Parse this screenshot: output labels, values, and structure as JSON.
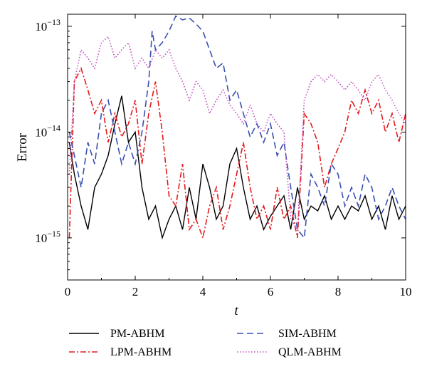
{
  "chart_data": {
    "type": "line",
    "xlabel": "t",
    "ylabel": "Error",
    "x_range": [
      0,
      10
    ],
    "y_range": [
      4e-16,
      1.3e-13
    ],
    "y_scale": "log",
    "x_ticks": [
      "0",
      "2",
      "4",
      "6",
      "8",
      "10"
    ],
    "y_ticks": [
      {
        "value": 1e-13,
        "base": "10",
        "exp": "−13"
      },
      {
        "value": 1e-14,
        "base": "10",
        "exp": "−14"
      },
      {
        "value": 1e-15,
        "base": "10",
        "exp": "−15"
      }
    ],
    "grid": false,
    "legend_position": "bottom",
    "series": [
      {
        "name": "PM-ABHM",
        "color": "#000000",
        "dash": "solid",
        "x": [
          0.05,
          0.2,
          0.4,
          0.6,
          0.8,
          1.0,
          1.2,
          1.4,
          1.6,
          1.8,
          2.0,
          2.2,
          2.4,
          2.6,
          2.8,
          3.0,
          3.2,
          3.4,
          3.6,
          3.8,
          4.0,
          4.2,
          4.4,
          4.6,
          4.8,
          5.0,
          5.2,
          5.4,
          5.6,
          5.8,
          6.0,
          6.2,
          6.4,
          6.6,
          6.8,
          7.0,
          7.2,
          7.4,
          7.6,
          7.8,
          8.0,
          8.2,
          8.4,
          8.6,
          8.8,
          9.0,
          9.2,
          9.4,
          9.6,
          9.8,
          10.0
        ],
        "y": [
          8e-15,
          4e-15,
          2e-15,
          1.2e-15,
          3e-15,
          4e-15,
          6e-15,
          1.2e-14,
          2.2e-14,
          8e-15,
          1e-14,
          3e-15,
          1.5e-15,
          2e-15,
          1e-15,
          1.5e-15,
          2e-15,
          1.2e-15,
          3e-15,
          1.5e-15,
          5e-15,
          3e-15,
          1.5e-15,
          2e-15,
          5e-15,
          7e-15,
          3e-15,
          1.5e-15,
          2e-15,
          1.2e-15,
          1.6e-15,
          2e-15,
          2.5e-15,
          1.2e-15,
          3e-15,
          1.5e-15,
          2e-15,
          1.8e-15,
          2.5e-15,
          1.5e-15,
          2e-15,
          1.5e-15,
          2e-15,
          1.8e-15,
          2.5e-15,
          1.5e-15,
          2e-15,
          1.2e-15,
          2.5e-15,
          1.5e-15,
          2e-15
        ]
      },
      {
        "name": "LPM-ABHM",
        "color": "#e41a1c",
        "dash": "dashdot",
        "x": [
          0.05,
          0.2,
          0.4,
          0.6,
          0.8,
          1.0,
          1.2,
          1.4,
          1.6,
          1.8,
          2.0,
          2.2,
          2.4,
          2.6,
          2.8,
          3.0,
          3.2,
          3.4,
          3.6,
          3.8,
          4.0,
          4.2,
          4.4,
          4.6,
          4.8,
          5.0,
          5.2,
          5.4,
          5.6,
          5.8,
          6.0,
          6.2,
          6.4,
          6.6,
          6.8,
          7.0,
          7.2,
          7.4,
          7.6,
          7.8,
          8.0,
          8.2,
          8.4,
          8.6,
          8.8,
          9.0,
          9.2,
          9.4,
          9.6,
          9.8,
          10.0
        ],
        "y": [
          1e-15,
          3e-14,
          4e-14,
          2.5e-14,
          1.5e-14,
          2e-14,
          8e-15,
          1.5e-14,
          9e-15,
          1.2e-14,
          2e-14,
          5e-15,
          1.5e-14,
          3e-14,
          1e-14,
          2.5e-15,
          2e-15,
          5e-15,
          1.2e-15,
          1.5e-15,
          1e-15,
          2e-15,
          3e-15,
          1.2e-15,
          2e-15,
          4e-15,
          8e-15,
          3e-15,
          1.5e-15,
          2e-15,
          1.2e-15,
          3e-15,
          1.5e-15,
          2e-15,
          1e-15,
          1.5e-14,
          1.2e-14,
          8e-15,
          3e-15,
          5e-15,
          7e-15,
          1e-14,
          2e-14,
          1.5e-14,
          2.5e-14,
          1.5e-14,
          2e-14,
          1e-14,
          1.5e-14,
          8e-15,
          1.5e-14
        ]
      },
      {
        "name": "SIM-ABHM",
        "color": "#3a4fb0",
        "dash": "dashed",
        "x": [
          0.05,
          0.2,
          0.4,
          0.6,
          0.8,
          1.0,
          1.2,
          1.4,
          1.6,
          1.8,
          2.0,
          2.2,
          2.4,
          2.5,
          2.6,
          2.8,
          3.0,
          3.2,
          3.4,
          3.6,
          3.8,
          4.0,
          4.2,
          4.4,
          4.6,
          4.8,
          5.0,
          5.2,
          5.4,
          5.6,
          5.8,
          6.0,
          6.2,
          6.4,
          6.6,
          6.8,
          7.0,
          7.2,
          7.4,
          7.6,
          7.8,
          8.0,
          8.2,
          8.4,
          8.6,
          8.8,
          9.0,
          9.2,
          9.4,
          9.6,
          9.8,
          10.0
        ],
        "y": [
          1e-14,
          6e-15,
          3e-15,
          8e-15,
          5e-15,
          1.5e-14,
          2e-14,
          1e-14,
          5e-15,
          8e-15,
          5e-15,
          1e-14,
          3e-14,
          9e-14,
          6e-14,
          7e-14,
          9e-14,
          1.25e-13,
          1.15e-13,
          1.2e-13,
          1.05e-13,
          9e-14,
          6e-14,
          4e-14,
          4.5e-14,
          2e-14,
          2.5e-14,
          1.5e-14,
          9e-15,
          1.2e-14,
          8e-15,
          1.2e-14,
          6e-15,
          8e-15,
          3e-15,
          1.2e-15,
          1e-15,
          4e-15,
          3e-15,
          2e-15,
          5e-15,
          4e-15,
          2e-15,
          3e-15,
          2e-15,
          4e-15,
          3e-15,
          1.5e-15,
          2e-15,
          3e-15,
          2e-15,
          1.5e-15
        ]
      },
      {
        "name": "QLM-ABHM",
        "color": "#c050c0",
        "dash": "dotted",
        "x": [
          0.05,
          0.2,
          0.4,
          0.6,
          0.8,
          1.0,
          1.2,
          1.4,
          1.6,
          1.8,
          2.0,
          2.2,
          2.4,
          2.6,
          2.8,
          3.0,
          3.2,
          3.4,
          3.6,
          3.8,
          4.0,
          4.2,
          4.4,
          4.6,
          4.8,
          5.0,
          5.2,
          5.4,
          5.6,
          5.8,
          6.0,
          6.2,
          6.4,
          6.6,
          6.8,
          7.0,
          7.2,
          7.4,
          7.6,
          7.8,
          8.0,
          8.2,
          8.4,
          8.6,
          8.8,
          9.0,
          9.2,
          9.4,
          9.6,
          9.8,
          10.0
        ],
        "y": [
          4e-15,
          3e-14,
          6e-14,
          5e-14,
          4e-14,
          7e-14,
          8e-14,
          5e-14,
          6e-14,
          7e-14,
          4e-14,
          5e-14,
          4e-14,
          6e-14,
          5e-14,
          6e-14,
          4e-14,
          3e-14,
          2e-14,
          3e-14,
          2.5e-14,
          1.5e-14,
          2e-14,
          2.5e-14,
          1.8e-14,
          1.5e-14,
          1.2e-14,
          1.8e-14,
          1.2e-14,
          1e-14,
          1.5e-14,
          1.2e-14,
          1e-14,
          1.5e-15,
          1.2e-15,
          2e-14,
          3e-14,
          3.5e-14,
          3e-14,
          3.5e-14,
          3e-14,
          2.5e-14,
          3e-14,
          2.5e-14,
          2e-14,
          3e-14,
          3.5e-14,
          2.5e-14,
          2e-14,
          1.5e-14,
          1.2e-14
        ]
      }
    ]
  }
}
